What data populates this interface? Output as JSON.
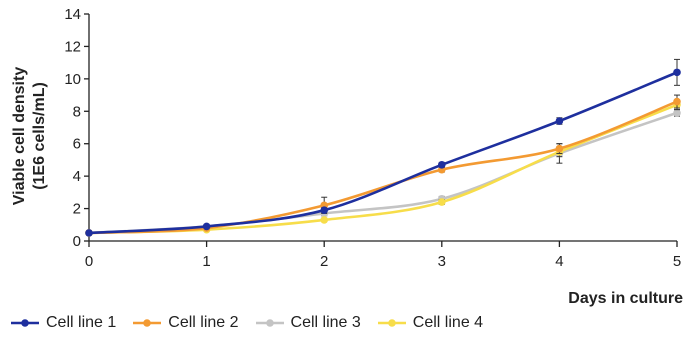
{
  "chart_data": {
    "type": "line",
    "title": "",
    "xlabel": "Days in culture",
    "ylabel_line1": "Viable cell density",
    "ylabel_line2": "(1E6 cells/mL)",
    "x": [
      0,
      1,
      2,
      3,
      4,
      5
    ],
    "xlim": [
      0,
      5
    ],
    "ylim": [
      0,
      14
    ],
    "x_ticks": [
      "0",
      "1",
      "2",
      "3",
      "4",
      "5"
    ],
    "y_ticks": [
      "0",
      "2",
      "4",
      "6",
      "8",
      "10",
      "12",
      "14"
    ],
    "grid": false,
    "legend_position": "bottom",
    "series": [
      {
        "name": "Cell line 1",
        "color": "#1e2f9e",
        "values": [
          0.5,
          0.9,
          1.9,
          4.7,
          7.4,
          10.4
        ],
        "error": [
          0,
          0.1,
          0.15,
          0.15,
          0.2,
          0.8
        ]
      },
      {
        "name": "Cell line 2",
        "color": "#f39a32",
        "values": [
          0.5,
          0.8,
          2.2,
          4.4,
          5.7,
          8.6
        ],
        "error": [
          0,
          0.1,
          0.5,
          0.15,
          0.3,
          0.4
        ]
      },
      {
        "name": "Cell line 3",
        "color": "#c4c4c4",
        "values": [
          0.5,
          0.9,
          1.7,
          2.6,
          5.4,
          7.9
        ],
        "error": [
          0,
          0.1,
          0.15,
          0.15,
          0.6,
          0.2
        ]
      },
      {
        "name": "Cell line 4",
        "color": "#f7dd4a",
        "values": [
          0.5,
          0.7,
          1.3,
          2.4,
          5.5,
          8.4
        ],
        "error": [
          0,
          0.1,
          0.1,
          0.15,
          0.3,
          0.3
        ]
      }
    ]
  }
}
